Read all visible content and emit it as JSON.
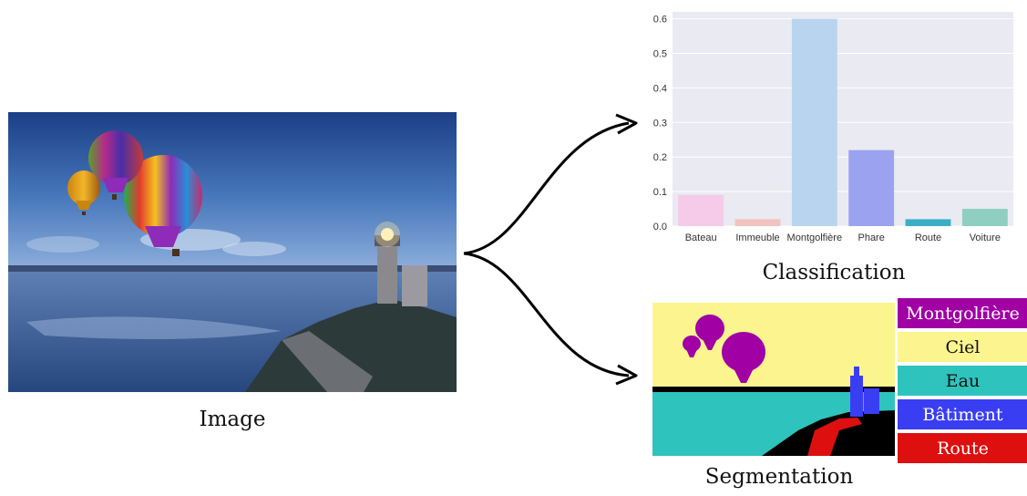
{
  "captions": {
    "image": "Image",
    "classification": "Classification",
    "segmentation": "Segmentation"
  },
  "chart_data": {
    "type": "bar",
    "categories": [
      "Bateau",
      "Immeuble",
      "Montgolfière",
      "Phare",
      "Route",
      "Voiture"
    ],
    "values": [
      0.09,
      0.02,
      0.6,
      0.22,
      0.02,
      0.05
    ],
    "colors": [
      "#f5cbe9",
      "#f2c3c0",
      "#b9d4ee",
      "#9ba3f0",
      "#3aaec4",
      "#8ecfc0"
    ],
    "yticks": [
      "0.0",
      "0.1",
      "0.2",
      "0.3",
      "0.4",
      "0.5",
      "0.6"
    ],
    "ylim": [
      0,
      0.62
    ],
    "grid": true
  },
  "legend": {
    "items": [
      {
        "label": "Montgolfière",
        "color": "#a000a4",
        "text_color": "#ffffff"
      },
      {
        "label": "Ciel",
        "color": "#fbf48f",
        "text_color": "#111111"
      },
      {
        "label": "Eau",
        "color": "#2ec4bd",
        "text_color": "#111111"
      },
      {
        "label": "Bâtiment",
        "color": "#3a3ef2",
        "text_color": "#ffffff"
      },
      {
        "label": "Route",
        "color": "#dd0f0f",
        "text_color": "#ffffff"
      }
    ]
  }
}
